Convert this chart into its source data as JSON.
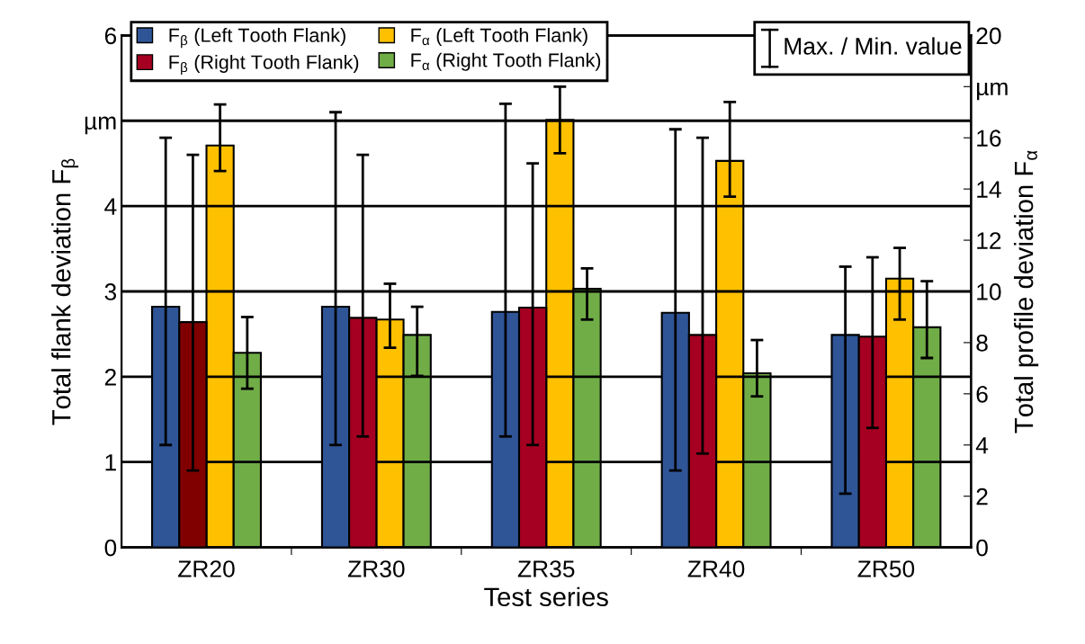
{
  "chart_data": {
    "type": "bar",
    "categories": [
      "ZR20",
      "ZR30",
      "ZR35",
      "ZR40",
      "ZR50"
    ],
    "xlabel": "Test series",
    "ylabel": "Total flank deviation F$_{β}$",
    "y2label": "Total profile deviation F$_{α}$",
    "ylim": [
      0,
      6
    ],
    "yticks": [
      0,
      1,
      2,
      3,
      4,
      {
        "value": 5,
        "label": "µm"
      },
      6
    ],
    "y2lim": [
      0,
      20
    ],
    "y2ticks": [
      0,
      2,
      4,
      6,
      8,
      10,
      12,
      14,
      16,
      {
        "value": 18,
        "label": "µm"
      },
      20
    ],
    "grid": "y",
    "legend": "top left",
    "annotations": [
      "Max. / Min. value"
    ],
    "series": [
      {
        "name": "F$_{β}$ (Left Tooth Flank)",
        "color": "#2f5597",
        "values": [
          2.82,
          2.82,
          2.76,
          2.75,
          2.49
        ],
        "errors": [
          [
            1.2,
            4.8
          ],
          [
            1.2,
            5.1
          ],
          [
            1.3,
            5.2
          ],
          [
            0.9,
            4.9
          ],
          [
            0.63,
            3.29
          ]
        ]
      },
      {
        "name": "F$_{β}$ (Right Tooth Flank)",
        "color": "#a50021",
        "colors": [
          "#800000",
          "#a50021",
          "#a50021",
          "#a50021",
          "#a50021"
        ],
        "values": [
          2.64,
          2.69,
          2.81,
          2.49,
          2.47
        ],
        "errors": [
          [
            0.9,
            4.6
          ],
          [
            1.3,
            4.6
          ],
          [
            1.2,
            4.5
          ],
          [
            1.1,
            4.8
          ],
          [
            1.4,
            3.4
          ]
        ]
      },
      {
        "name": "F$_{α}$ (Left Tooth Flank)",
        "color": "#ffc000",
        "axis": "y2",
        "values": [
          15.7,
          8.9,
          16.7,
          15.1,
          10.5
        ],
        "errors": [
          [
            14.7,
            17.3
          ],
          [
            7.8,
            10.3
          ],
          [
            15.4,
            18.0
          ],
          [
            13.7,
            17.4
          ],
          [
            8.9,
            11.7
          ]
        ]
      },
      {
        "name": "F$_{α}$ (Right Tooth Flank)",
        "color": "#70ad47",
        "axis": "y2",
        "values": [
          7.6,
          8.3,
          10.1,
          6.8,
          8.6
        ],
        "errors": [
          [
            6.2,
            9.0
          ],
          [
            6.7,
            9.4
          ],
          [
            8.9,
            10.9
          ],
          [
            5.9,
            8.1
          ],
          [
            7.4,
            10.4
          ]
        ]
      }
    ]
  }
}
